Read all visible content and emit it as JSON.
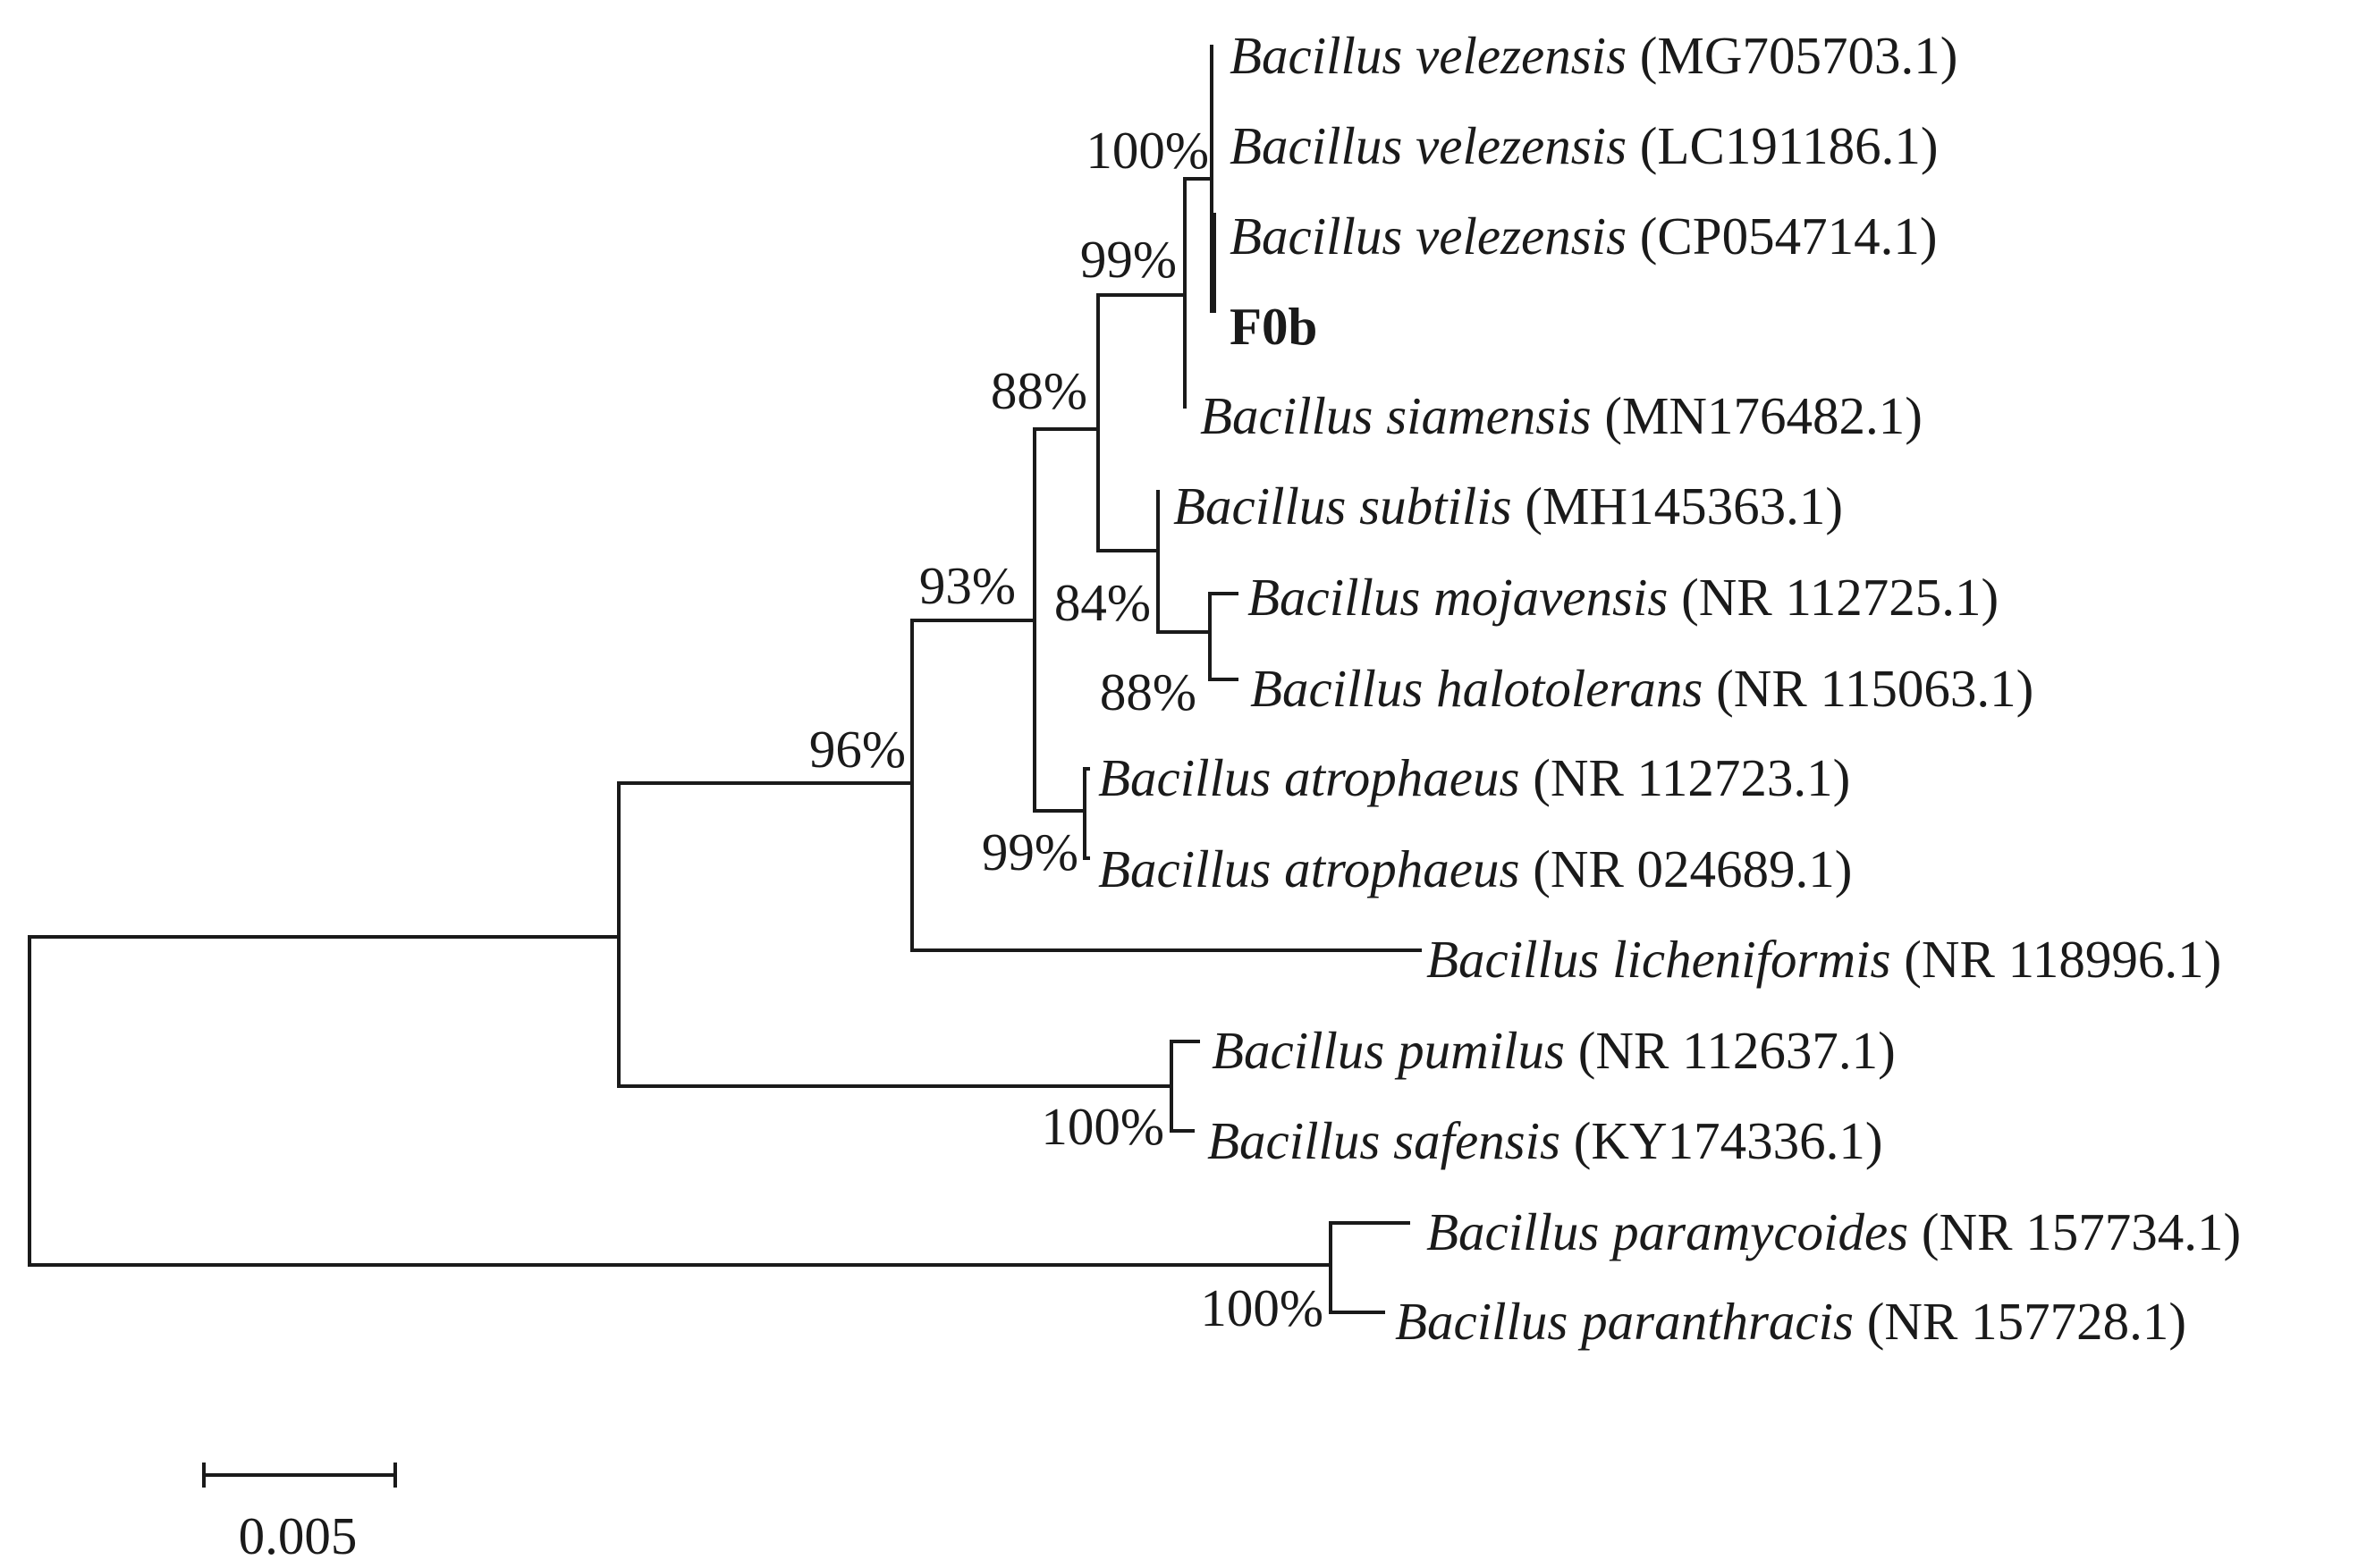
{
  "taxa": [
    {
      "id": "t1",
      "genus_species": "Bacillus velezensis",
      "accession": "(MG705703.1)"
    },
    {
      "id": "t2",
      "genus_species": "Bacillus velezensis",
      "accession": "(LC191186.1)"
    },
    {
      "id": "t3",
      "genus_species": "Bacillus velezensis",
      "accession": "(CP054714.1)"
    },
    {
      "id": "t4",
      "genus_species": "",
      "accession": "",
      "bold_label": "F0b"
    },
    {
      "id": "t5",
      "genus_species": "Bacillus siamensis",
      "accession": "(MN176482.1)"
    },
    {
      "id": "t6",
      "genus_species": "Bacillus subtilis",
      "accession": "(MH145363.1)"
    },
    {
      "id": "t7",
      "genus_species": "Bacillus mojavensis",
      "accession": "(NR 112725.1)"
    },
    {
      "id": "t8",
      "genus_species": "Bacillus halotolerans",
      "accession": "(NR 115063.1)"
    },
    {
      "id": "t9",
      "genus_species": "Bacillus atrophaeus",
      "accession": "(NR 112723.1)"
    },
    {
      "id": "t10",
      "genus_species": "Bacillus atrophaeus",
      "accession": "(NR 024689.1)"
    },
    {
      "id": "t11",
      "genus_species": "Bacillus licheniformis",
      "accession": "(NR 118996.1)"
    },
    {
      "id": "t12",
      "genus_species": "Bacillus pumilus",
      "accession": "(NR 112637.1)"
    },
    {
      "id": "t13",
      "genus_species": "Bacillus safensis",
      "accession": "(KY174336.1)"
    },
    {
      "id": "t14",
      "genus_species": "Bacillus paramycoides",
      "accession": "(NR 157734.1)"
    },
    {
      "id": "t15",
      "genus_species": "Bacillus paranthracis",
      "accession": "(NR 157728.1)"
    }
  ],
  "bootstrap": [
    {
      "id": "b1",
      "value": "100%"
    },
    {
      "id": "b2",
      "value": "99%"
    },
    {
      "id": "b3",
      "value": "88%"
    },
    {
      "id": "b4",
      "value": "84%"
    },
    {
      "id": "b5",
      "value": "88%"
    },
    {
      "id": "b6",
      "value": "93%"
    },
    {
      "id": "b7",
      "value": "99%"
    },
    {
      "id": "b8",
      "value": "96%"
    },
    {
      "id": "b9",
      "value": "100%"
    },
    {
      "id": "b10",
      "value": "100%"
    }
  ],
  "scale_bar": {
    "label": "0.005"
  }
}
